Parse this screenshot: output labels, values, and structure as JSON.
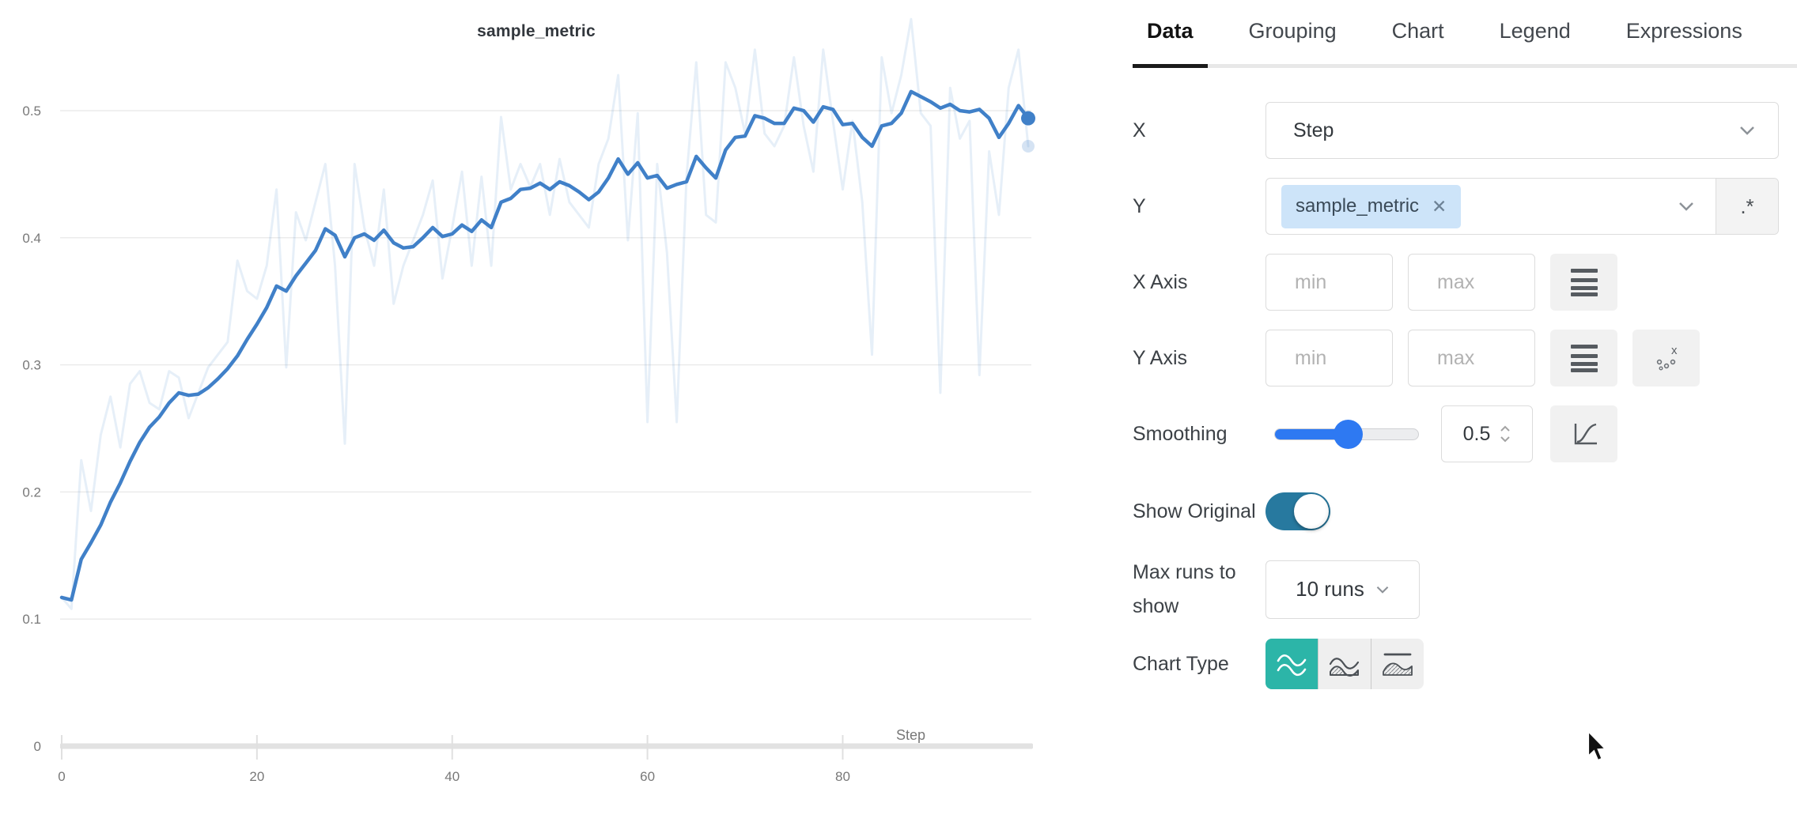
{
  "colors": {
    "line_blue": "#4080c8",
    "tag_blue_bg": "#cde4f9",
    "slider_blue": "#2e79f2",
    "toggle_blue": "#27799f",
    "chart_type_selected_teal": "#2cb5a8",
    "grid_gray": "#ebebeb",
    "axis_gray": "#e2e2e2",
    "tick_label_gray": "#787878"
  },
  "chart_data": {
    "type": "line",
    "title": "sample_metric",
    "xlabel": "Step",
    "ylabel": "",
    "xlim": [
      0,
      99
    ],
    "ylim": [
      0,
      0.56
    ],
    "grid": true,
    "legend_position": "none",
    "x_ticks": [
      0,
      20,
      40,
      60,
      80
    ],
    "y_ticks": [
      0,
      0.1,
      0.2,
      0.3,
      0.4,
      0.5
    ],
    "y_tick_labels": [
      "0",
      "0.1",
      "0.2",
      "0.3",
      "0.4",
      "0.5"
    ],
    "series": [
      {
        "name": "sample_metric (smoothed 0.5)",
        "color": "#4080c8",
        "opacity": 1,
        "values": [
          0.117,
          0.115,
          0.147,
          0.16,
          0.174,
          0.192,
          0.207,
          0.224,
          0.239,
          0.251,
          0.259,
          0.27,
          0.278,
          0.276,
          0.277,
          0.282,
          0.289,
          0.297,
          0.307,
          0.32,
          0.332,
          0.345,
          0.362,
          0.358,
          0.37,
          0.38,
          0.39,
          0.407,
          0.402,
          0.385,
          0.4,
          0.403,
          0.398,
          0.406,
          0.396,
          0.392,
          0.393,
          0.4,
          0.408,
          0.401,
          0.403,
          0.41,
          0.405,
          0.414,
          0.408,
          0.428,
          0.431,
          0.438,
          0.439,
          0.443,
          0.438,
          0.444,
          0.441,
          0.436,
          0.43,
          0.436,
          0.447,
          0.462,
          0.45,
          0.459,
          0.447,
          0.449,
          0.439,
          0.442,
          0.444,
          0.464,
          0.455,
          0.447,
          0.469,
          0.479,
          0.48,
          0.496,
          0.494,
          0.49,
          0.49,
          0.502,
          0.5,
          0.491,
          0.503,
          0.501,
          0.489,
          0.49,
          0.479,
          0.472,
          0.488,
          0.49,
          0.498,
          0.515,
          0.511,
          0.507,
          0.502,
          0.505,
          0.5,
          0.499,
          0.501,
          0.494,
          0.479,
          0.49,
          0.504,
          0.494
        ]
      },
      {
        "name": "sample_metric (original)",
        "color": "#4080c8",
        "opacity": 0.13,
        "values": [
          0.117,
          0.108,
          0.225,
          0.185,
          0.245,
          0.275,
          0.235,
          0.285,
          0.295,
          0.27,
          0.265,
          0.295,
          0.29,
          0.258,
          0.278,
          0.298,
          0.308,
          0.318,
          0.382,
          0.358,
          0.352,
          0.378,
          0.438,
          0.298,
          0.42,
          0.398,
          0.428,
          0.458,
          0.378,
          0.238,
          0.458,
          0.408,
          0.378,
          0.438,
          0.348,
          0.378,
          0.398,
          0.418,
          0.445,
          0.368,
          0.408,
          0.452,
          0.378,
          0.448,
          0.378,
          0.495,
          0.438,
          0.458,
          0.44,
          0.458,
          0.418,
          0.462,
          0.428,
          0.418,
          0.408,
          0.458,
          0.478,
          0.528,
          0.398,
          0.498,
          0.255,
          0.458,
          0.388,
          0.255,
          0.448,
          0.538,
          0.418,
          0.412,
          0.538,
          0.518,
          0.482,
          0.548,
          0.482,
          0.472,
          0.488,
          0.542,
          0.488,
          0.452,
          0.548,
          0.492,
          0.438,
          0.492,
          0.428,
          0.308,
          0.542,
          0.498,
          0.528,
          0.572,
          0.498,
          0.488,
          0.278,
          0.518,
          0.478,
          0.492,
          0.292,
          0.468,
          0.418,
          0.518,
          0.548,
          0.472
        ]
      }
    ]
  },
  "panel": {
    "tabs": [
      "Data",
      "Grouping",
      "Chart",
      "Legend",
      "Expressions"
    ],
    "active_tab": "Data",
    "x_row": {
      "label": "X",
      "value": "Step"
    },
    "y_row": {
      "label": "Y",
      "tag": "sample_metric",
      "remove_icon": "✕",
      "regex_label": ".*"
    },
    "x_axis_row": {
      "label": "X Axis",
      "min_placeholder": "min",
      "max_placeholder": "max"
    },
    "y_axis_row": {
      "label": "Y Axis",
      "min_placeholder": "min",
      "max_placeholder": "max"
    },
    "smoothing_row": {
      "label": "Smoothing",
      "value": "0.5"
    },
    "show_original_row": {
      "label": "Show Original",
      "state": "on"
    },
    "max_runs_row": {
      "label": "Max runs to show",
      "value": "10 runs"
    },
    "chart_type_row": {
      "label": "Chart Type",
      "selected_index": 0
    }
  }
}
